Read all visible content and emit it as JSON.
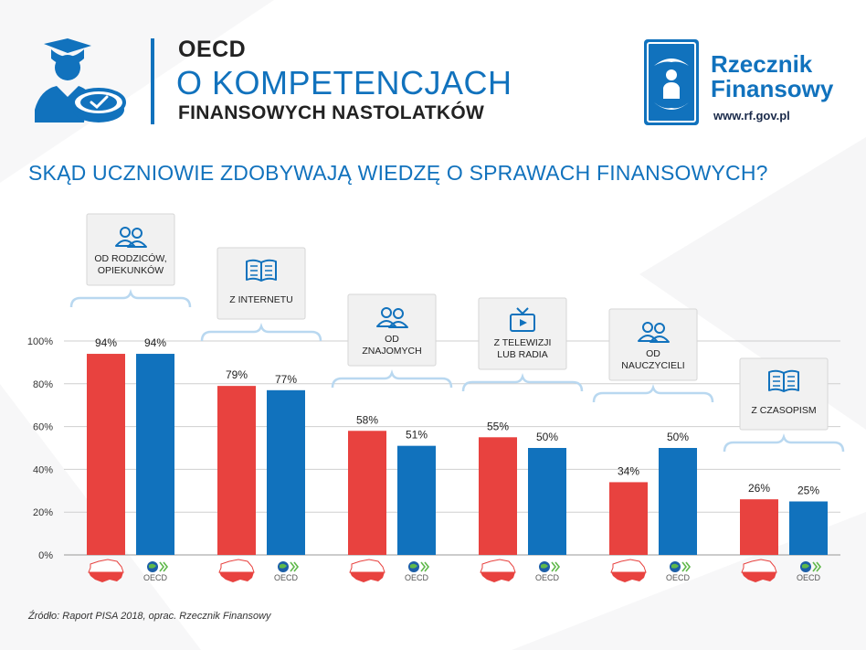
{
  "header": {
    "title_line1": "OECD",
    "title_line2": "O KOMPETENCJACH",
    "title_line3": "FINANSOWYCH NASTOLATKÓW"
  },
  "brand": {
    "name_line1": "Rzecznik",
    "name_line2": "Finansowy",
    "url": "www.rf.gov.pl"
  },
  "question": "SKĄD UCZNIOWIE ZDOBYWAJĄ WIEDZĘ O SPRAWACH FINANSOWYCH?",
  "source": "Źródło: Raport PISA 2018, oprac. Rzecznik Finansowy",
  "chart_data": {
    "type": "bar",
    "title": "SKĄD UCZNIOWIE ZDOBYWAJĄ WIEDZĘ O SPRAWACH FINANSOWYCH?",
    "categories": [
      {
        "lines": [
          "OD RODZICÓW,",
          "OPIEKUNKÓW"
        ],
        "icon": "people-icon"
      },
      {
        "lines": [
          "Z INTERNETU"
        ],
        "icon": "book-icon"
      },
      {
        "lines": [
          "OD",
          "ZNAJOMYCH"
        ],
        "icon": "people-icon"
      },
      {
        "lines": [
          "Z TELEWIZJI",
          "LUB RADIA"
        ],
        "icon": "tv-icon"
      },
      {
        "lines": [
          "OD",
          "NAUCZYCIELI"
        ],
        "icon": "people-icon"
      },
      {
        "lines": [
          "Z CZASOPISM"
        ],
        "icon": "book-icon"
      }
    ],
    "series": [
      {
        "label": "poland-map-icon",
        "color": "#e8423f",
        "values": [
          94,
          79,
          58,
          55,
          34,
          26
        ]
      },
      {
        "label": "OECD",
        "color": "#1172bd",
        "values": [
          94,
          77,
          51,
          50,
          50,
          25
        ]
      }
    ],
    "ylim": [
      0,
      100
    ],
    "yticks": [
      "0%",
      "20%",
      "40%",
      "60%",
      "80%",
      "100%"
    ],
    "value_suffix": "%",
    "grid": true
  }
}
